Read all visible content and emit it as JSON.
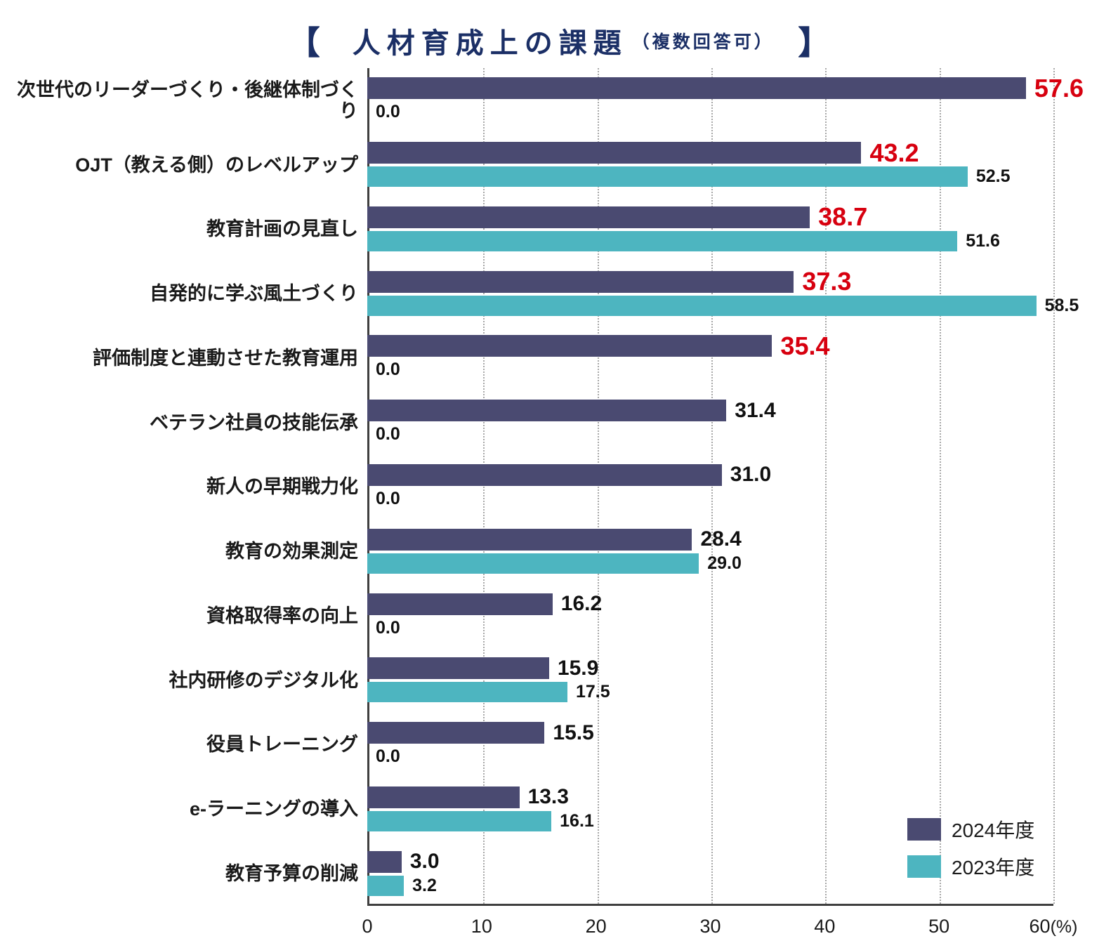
{
  "title": {
    "bracket_left": "【",
    "main": "人材育成上の課題",
    "sub": "（複数回答可）",
    "bracket_right": "】"
  },
  "colors": {
    "bar_2024": "#4a4a71",
    "bar_2023": "#4db5c0",
    "highlight_value": "#d7000f",
    "title_text": "#1b2f66",
    "axis_line": "#3f3f3f",
    "gridline": "#a8a8a8"
  },
  "legend": {
    "items": [
      {
        "label": "2024年度",
        "color": "#4a4a71"
      },
      {
        "label": "2023年度",
        "color": "#4db5c0"
      }
    ]
  },
  "chart_data": {
    "type": "bar",
    "orientation": "horizontal",
    "title": "人材育成上の課題（複数回答可）",
    "categories": [
      "次世代のリーダーづくり・後継体制づくり",
      "OJT（教える側）のレベルアップ",
      "教育計画の見直し",
      "自発的に学ぶ風土づくり",
      "評価制度と連動させた教育運用",
      "ベテラン社員の技能伝承",
      "新人の早期戦力化",
      "教育の効果測定",
      "資格取得率の向上",
      "社内研修のデジタル化",
      "役員トレーニング",
      "e-ラーニングの導入",
      "教育予算の削減"
    ],
    "series": [
      {
        "name": "2024年度",
        "color": "#4a4a71",
        "values": [
          57.6,
          43.2,
          38.7,
          37.3,
          35.4,
          31.4,
          31.0,
          28.4,
          16.2,
          15.9,
          15.5,
          13.3,
          3.0
        ],
        "highlighted": [
          true,
          true,
          true,
          true,
          true,
          false,
          false,
          false,
          false,
          false,
          false,
          false,
          false
        ]
      },
      {
        "name": "2023年度",
        "color": "#4db5c0",
        "values": [
          0.0,
          52.5,
          51.6,
          58.5,
          0.0,
          0.0,
          0.0,
          29.0,
          0.0,
          17.5,
          0.0,
          16.1,
          3.2
        ]
      }
    ],
    "xlim": [
      0,
      60
    ],
    "x_ticks": [
      0,
      10,
      20,
      30,
      40,
      50,
      60
    ],
    "x_unit": "(%)",
    "grid": "dotted-vertical",
    "legend_position": "bottom-right-inside"
  }
}
